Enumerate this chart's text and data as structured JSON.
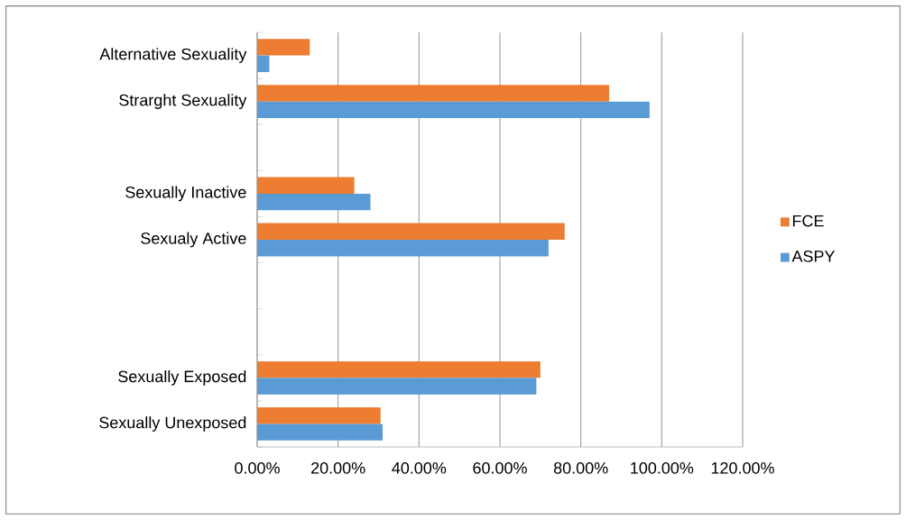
{
  "chart_data": {
    "type": "bar",
    "orientation": "horizontal",
    "categories": [
      "Alternative Sexuality",
      "Strarght Sexuality",
      null,
      "Sexually Inactive",
      "Sexualy Active",
      null,
      null,
      "Sexually Exposed",
      "Sexually Unexposed"
    ],
    "series": [
      {
        "name": "FCE",
        "color": "#ed7d31",
        "values": [
          13,
          87,
          null,
          24,
          76,
          null,
          null,
          70,
          30.5
        ]
      },
      {
        "name": "ASPY",
        "color": "#5b9bd5",
        "values": [
          3,
          97,
          null,
          28,
          72,
          null,
          null,
          69,
          31
        ]
      }
    ],
    "xlim": [
      0,
      120
    ],
    "xticks": [
      {
        "value": 0,
        "label": "0.00%"
      },
      {
        "value": 20,
        "label": "20.00%"
      },
      {
        "value": 40,
        "label": "40.00%"
      },
      {
        "value": 60,
        "label": "60.00%"
      },
      {
        "value": 80,
        "label": "80.00%"
      },
      {
        "value": 100,
        "label": "100.00%"
      },
      {
        "value": 120,
        "label": "120.00%"
      }
    ],
    "grid": "x",
    "legend": "right"
  }
}
